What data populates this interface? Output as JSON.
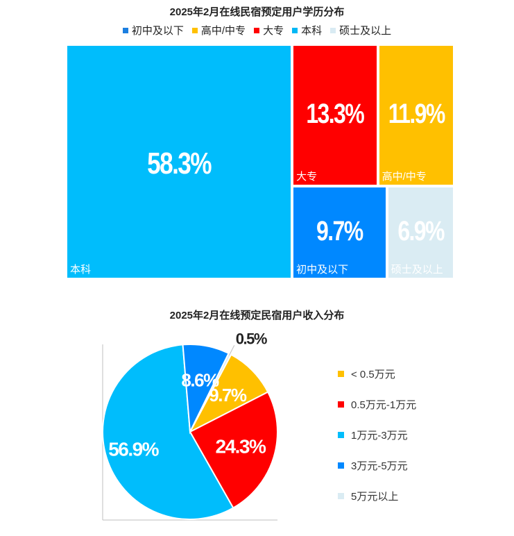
{
  "chart_data": [
    {
      "type": "treemap",
      "title": "2025年2月在线民宿预定用户学历分布",
      "legend_position": "top",
      "categories": [
        "初中及以下",
        "高中/中专",
        "大专",
        "本科",
        "硕士及以上"
      ],
      "legend_colors": [
        "#1c7fe0",
        "#ffc000",
        "#ff0000",
        "#00b8f5",
        "#d9ebf3"
      ],
      "items": [
        {
          "label": "本科",
          "value": 58.3,
          "value_text": "58.3%",
          "color": "#00bdfc"
        },
        {
          "label": "大专",
          "value": 13.3,
          "value_text": "13.3%",
          "color": "#ff0000"
        },
        {
          "label": "高中/中专",
          "value": 11.9,
          "value_text": "11.9%",
          "color": "#ffc000"
        },
        {
          "label": "初中及以下",
          "value": 9.7,
          "value_text": "9.7%",
          "color": "#0088ff"
        },
        {
          "label": "硕士及以上",
          "value": 6.9,
          "value_text": "6.9%",
          "color": "#daecf3"
        }
      ]
    },
    {
      "type": "pie",
      "title": "2025年2月在线预定民宿用户收入分布",
      "legend_position": "right",
      "slices": [
        {
          "label": "< 0.5万元",
          "value": 9.7,
          "value_text": "9.7%",
          "color": "#ffc000"
        },
        {
          "label": "0.5万元-1万元",
          "value": 24.3,
          "value_text": "24.3%",
          "color": "#ff0000"
        },
        {
          "label": "1万元-3万元",
          "value": 56.9,
          "value_text": "56.9%",
          "color": "#00bdfc"
        },
        {
          "label": "3万元-5万元",
          "value": 8.6,
          "value_text": "8.6%",
          "color": "#0088ff"
        },
        {
          "label": "5万元以上",
          "value": 0.5,
          "value_text": "0.5%",
          "color": "#daecf3"
        }
      ]
    }
  ]
}
